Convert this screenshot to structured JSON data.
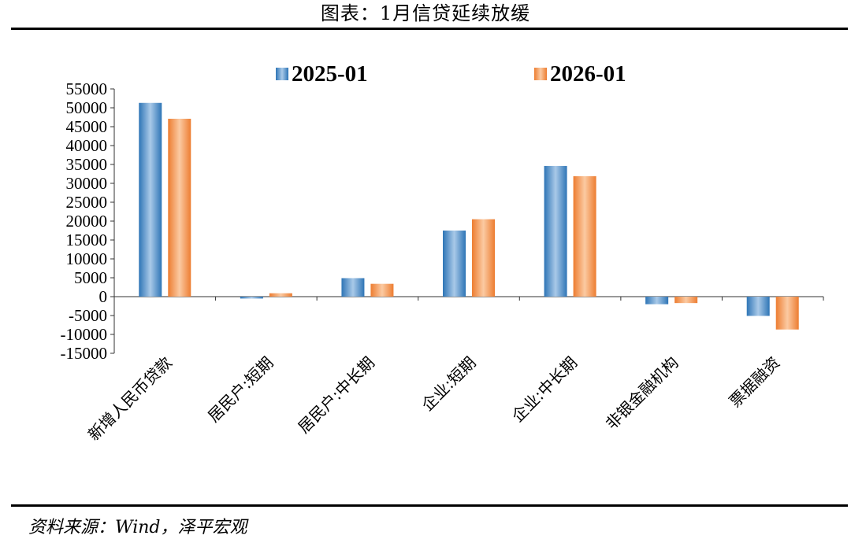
{
  "header": {
    "title": "图表：1月信贷延续放缓"
  },
  "footer": {
    "source": "资料来源：Wind，泽平宏观"
  },
  "chart_data": {
    "type": "bar",
    "categories": [
      "新增人民币贷款",
      "居民户:短期",
      "居民户:中长期",
      "企业:短期",
      "企业:中长期",
      "非银金融机构",
      "票据融资"
    ],
    "series": [
      {
        "name": "2025-01",
        "values": [
          51300,
          -500,
          4900,
          17500,
          34600,
          -2000,
          -5100
        ],
        "color": "#5b9bd5"
      },
      {
        "name": "2026-01",
        "values": [
          47100,
          900,
          3400,
          20500,
          31900,
          -1700,
          -8700
        ],
        "color": "#f4a460"
      }
    ],
    "yticks": [
      -15000,
      -10000,
      -5000,
      0,
      5000,
      10000,
      15000,
      20000,
      25000,
      30000,
      35000,
      40000,
      45000,
      50000,
      55000
    ],
    "ylim": [
      -15000,
      55000
    ],
    "legend_position": "top",
    "grid": false
  }
}
